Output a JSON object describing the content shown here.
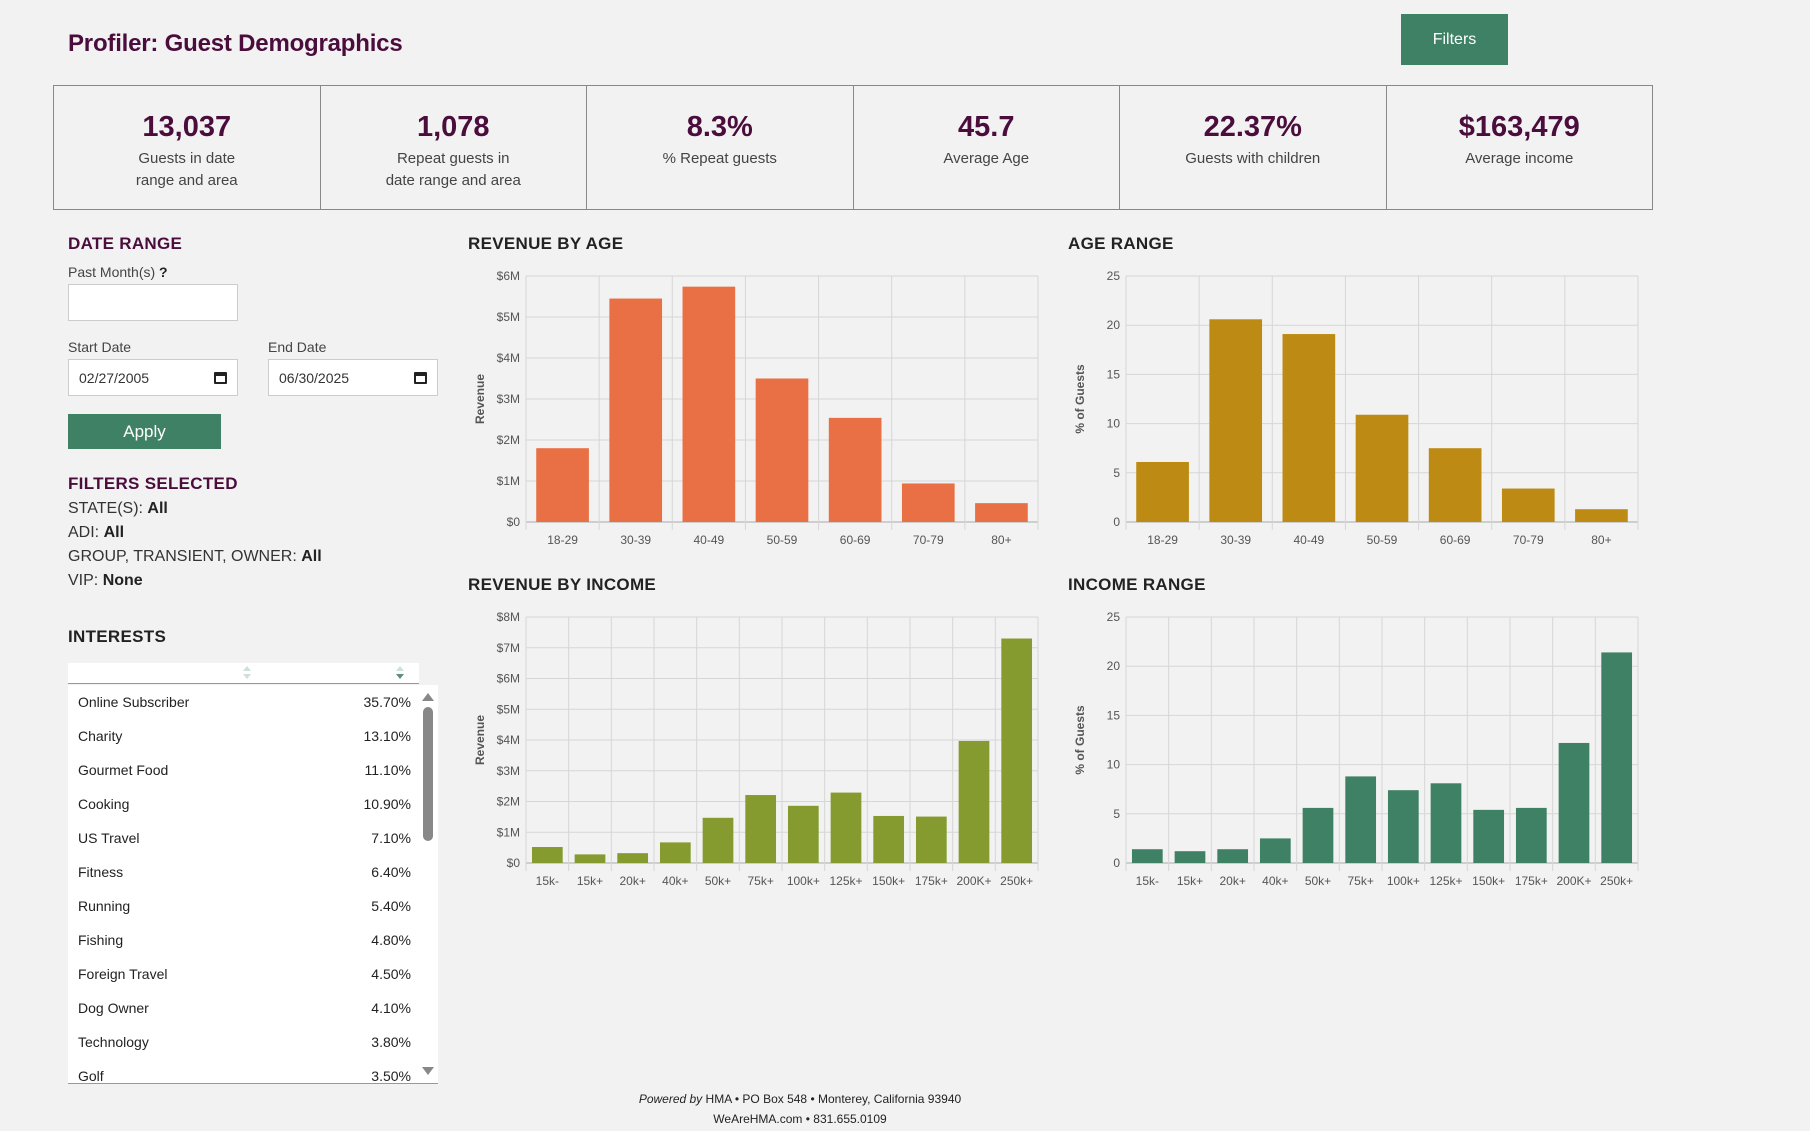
{
  "header": {
    "title": "Profiler: Guest Demographics",
    "filters_button": "Filters"
  },
  "kpis": [
    {
      "value": "13,037",
      "label": "Guests in date\nrange and area"
    },
    {
      "value": "1,078",
      "label": "Repeat guests in\ndate range and area"
    },
    {
      "value": "8.3%",
      "label": "% Repeat guests"
    },
    {
      "value": "45.7",
      "label": "Average Age"
    },
    {
      "value": "22.37%",
      "label": "Guests with children"
    },
    {
      "value": "$163,479",
      "label": "Average income"
    }
  ],
  "date_range": {
    "heading": "DATE RANGE",
    "past_months_label": "Past Month(s)",
    "past_months_help": "?",
    "past_months_value": "",
    "start_label": "Start Date",
    "start_value": "02/27/2005",
    "end_label": "End Date",
    "end_value": "06/30/2025",
    "apply_button": "Apply"
  },
  "filters_selected": {
    "heading": "FILTERS SELECTED",
    "items": [
      {
        "label": "STATE(S):",
        "value": "All"
      },
      {
        "label": "ADI:",
        "value": "All"
      },
      {
        "label": "GROUP, TRANSIENT, OWNER:",
        "value": "All"
      },
      {
        "label": "VIP:",
        "value": "None"
      }
    ]
  },
  "interests": {
    "heading": "INTERESTS",
    "rows": [
      {
        "name": "Online Subscriber",
        "pct": "35.70%"
      },
      {
        "name": "Charity",
        "pct": "13.10%"
      },
      {
        "name": "Gourmet Food",
        "pct": "11.10%"
      },
      {
        "name": "Cooking",
        "pct": "10.90%"
      },
      {
        "name": "US Travel",
        "pct": "7.10%"
      },
      {
        "name": "Fitness",
        "pct": "6.40%"
      },
      {
        "name": "Running",
        "pct": "5.40%"
      },
      {
        "name": "Fishing",
        "pct": "4.80%"
      },
      {
        "name": "Foreign Travel",
        "pct": "4.50%"
      },
      {
        "name": "Dog Owner",
        "pct": "4.10%"
      },
      {
        "name": "Technology",
        "pct": "3.80%"
      },
      {
        "name": "Golf",
        "pct": "3.50%"
      }
    ]
  },
  "chart_data": [
    {
      "id": "revenue-by-age",
      "type": "bar",
      "title": "REVENUE BY AGE",
      "xlabel": "",
      "ylabel": "Revenue",
      "categories": [
        "18-29",
        "30-39",
        "40-49",
        "50-59",
        "60-69",
        "70-79",
        "80+"
      ],
      "values": [
        1.8,
        5.45,
        5.74,
        3.5,
        2.54,
        0.94,
        0.46
      ],
      "value_units": "$M",
      "ylim": [
        0,
        6
      ],
      "yticks": [
        0,
        1,
        2,
        3,
        4,
        5,
        6
      ],
      "ytick_labels": [
        "$0",
        "$1M",
        "$2M",
        "$3M",
        "$4M",
        "$5M",
        "$6M"
      ],
      "color": "#e96f44",
      "grid": true,
      "legend": "none"
    },
    {
      "id": "age-range",
      "type": "bar",
      "title": "AGE RANGE",
      "xlabel": "",
      "ylabel": "% of Guests",
      "categories": [
        "18-29",
        "30-39",
        "40-49",
        "50-59",
        "60-69",
        "70-79",
        "80+"
      ],
      "values": [
        6.1,
        20.6,
        19.1,
        10.9,
        7.5,
        3.4,
        1.3
      ],
      "ylim": [
        0,
        25
      ],
      "yticks": [
        0,
        5,
        10,
        15,
        20,
        25
      ],
      "ytick_labels": [
        "0",
        "5",
        "10",
        "15",
        "20",
        "25"
      ],
      "color": "#bd8a13",
      "grid": true,
      "legend": "none"
    },
    {
      "id": "revenue-by-income",
      "type": "bar",
      "title": "REVENUE BY INCOME",
      "xlabel": "",
      "ylabel": "Revenue",
      "categories": [
        "15k-",
        "15k+",
        "20k+",
        "40k+",
        "50k+",
        "75k+",
        "100k+",
        "125k+",
        "150k+",
        "175k+",
        "200K+",
        "250k+"
      ],
      "values": [
        0.52,
        0.28,
        0.32,
        0.67,
        1.47,
        2.21,
        1.86,
        2.29,
        1.53,
        1.51,
        3.97,
        7.3
      ],
      "value_units": "$M",
      "ylim": [
        0,
        8
      ],
      "yticks": [
        0,
        1,
        2,
        3,
        4,
        5,
        6,
        7,
        8
      ],
      "ytick_labels": [
        "$0",
        "$1M",
        "$2M",
        "$3M",
        "$4M",
        "$5M",
        "$6M",
        "$7M",
        "$8M"
      ],
      "color": "#869b2f",
      "grid": true,
      "legend": "none"
    },
    {
      "id": "income-range",
      "type": "bar",
      "title": "INCOME RANGE",
      "xlabel": "",
      "ylabel": "% of Guests",
      "categories": [
        "15k-",
        "15k+",
        "20k+",
        "40k+",
        "50k+",
        "75k+",
        "100k+",
        "125k+",
        "150k+",
        "175k+",
        "200K+",
        "250k+"
      ],
      "values": [
        1.4,
        1.2,
        1.4,
        2.5,
        5.6,
        8.8,
        7.4,
        8.1,
        5.4,
        5.6,
        12.2,
        21.4
      ],
      "ylim": [
        0,
        25
      ],
      "yticks": [
        0,
        5,
        10,
        15,
        20,
        25
      ],
      "ytick_labels": [
        "0",
        "5",
        "10",
        "15",
        "20",
        "25"
      ],
      "color": "#3f8165",
      "grid": true,
      "legend": "none"
    }
  ],
  "footer": {
    "powered_by": "Powered by",
    "line1": "HMA • PO Box 548 • Monterey, California 93940",
    "line2": "WeAreHMA.com • 831.655.0109"
  }
}
